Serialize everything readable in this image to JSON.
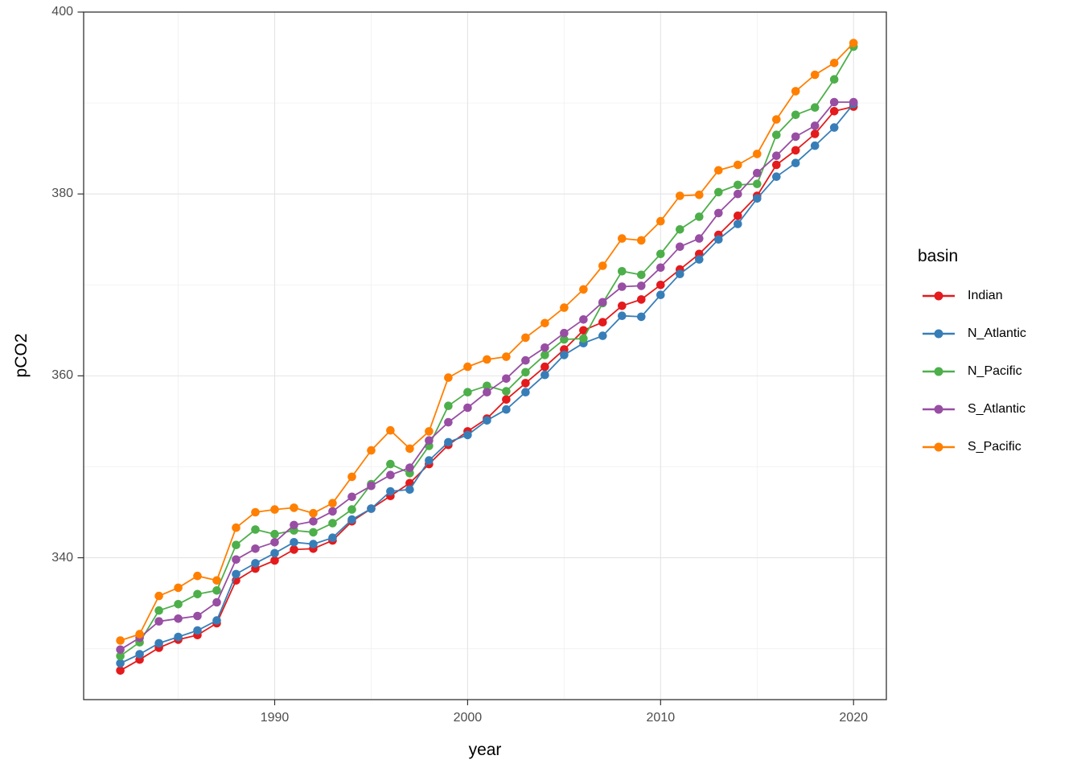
{
  "page": {
    "background": "#ffffff"
  },
  "chart_data": {
    "type": "line",
    "title": "",
    "xlabel": "year",
    "ylabel": "pCO2",
    "legend_title": "basin",
    "legend_position": "right",
    "grid": true,
    "marker": "circle",
    "x_axis": {
      "ticks": [
        1990,
        2000,
        2010,
        2020
      ],
      "tick_labels": [
        "1990",
        "2000",
        "2010",
        "2020"
      ],
      "minor_ticks": [
        1985,
        1995,
        2005,
        2015
      ],
      "range": [
        1980.1,
        2021.7
      ]
    },
    "y_axis": {
      "ticks": [
        340,
        360,
        380,
        400
      ],
      "tick_labels": [
        "340",
        "360",
        "380",
        "400"
      ],
      "minor_ticks": [
        330,
        350,
        370,
        390
      ],
      "range": [
        324.4,
        400.0
      ]
    },
    "x": [
      1982,
      1983,
      1984,
      1985,
      1986,
      1987,
      1988,
      1989,
      1990,
      1991,
      1992,
      1993,
      1994,
      1995,
      1996,
      1997,
      1998,
      1999,
      2000,
      2001,
      2002,
      2003,
      2004,
      2005,
      2006,
      2007,
      2008,
      2009,
      2010,
      2011,
      2012,
      2013,
      2014,
      2015,
      2016,
      2017,
      2018,
      2019,
      2020
    ],
    "series": [
      {
        "name": "Indian",
        "color": "#E41A1C",
        "values": [
          327.6,
          328.8,
          330.1,
          331.0,
          331.5,
          332.8,
          337.5,
          338.8,
          339.7,
          340.9,
          341.0,
          341.9,
          344.0,
          345.4,
          346.8,
          348.2,
          350.3,
          352.4,
          353.9,
          355.3,
          357.4,
          359.2,
          361.0,
          362.9,
          365.0,
          365.9,
          367.7,
          368.4,
          370.0,
          371.7,
          373.4,
          375.5,
          377.6,
          379.8,
          383.2,
          384.8,
          386.6,
          389.1,
          389.6
        ]
      },
      {
        "name": "N_Atlantic",
        "color": "#377EB8",
        "values": [
          328.4,
          329.4,
          330.6,
          331.3,
          332.0,
          333.1,
          338.2,
          339.4,
          340.5,
          341.7,
          341.5,
          342.2,
          344.2,
          345.4,
          347.3,
          347.5,
          350.7,
          352.7,
          353.5,
          355.1,
          356.3,
          358.2,
          360.1,
          362.3,
          363.6,
          364.4,
          366.6,
          366.5,
          368.9,
          371.2,
          372.8,
          375.0,
          376.7,
          379.5,
          381.9,
          383.4,
          385.3,
          387.3,
          389.9
        ]
      },
      {
        "name": "N_Pacific",
        "color": "#4DAF4A",
        "values": [
          329.2,
          330.7,
          334.2,
          334.9,
          336.0,
          336.4,
          341.4,
          343.1,
          342.6,
          343.0,
          342.8,
          343.8,
          345.3,
          348.1,
          350.3,
          349.3,
          352.3,
          356.7,
          358.2,
          358.9,
          358.3,
          360.4,
          362.3,
          364.0,
          364.1,
          368.0,
          371.5,
          371.1,
          373.4,
          376.1,
          377.5,
          380.2,
          381.0,
          381.1,
          386.5,
          388.7,
          389.5,
          392.6,
          396.2
        ]
      },
      {
        "name": "S_Atlantic",
        "color": "#984EA3",
        "values": [
          329.9,
          331.2,
          333.0,
          333.3,
          333.6,
          335.1,
          339.8,
          341.0,
          341.7,
          343.6,
          344.0,
          345.1,
          346.7,
          347.9,
          349.1,
          349.9,
          352.9,
          354.9,
          356.5,
          358.2,
          359.7,
          361.7,
          363.1,
          364.7,
          366.2,
          368.1,
          369.8,
          369.9,
          371.9,
          374.2,
          375.1,
          377.9,
          380.0,
          382.3,
          384.2,
          386.3,
          387.5,
          390.1,
          390.1
        ]
      },
      {
        "name": "S_Pacific",
        "color": "#FF7F00",
        "values": [
          330.9,
          331.6,
          335.8,
          336.7,
          338.0,
          337.5,
          343.3,
          345.0,
          345.3,
          345.5,
          344.9,
          346.0,
          348.9,
          351.8,
          354.0,
          352.0,
          353.9,
          359.8,
          361.0,
          361.8,
          362.1,
          364.2,
          365.8,
          367.5,
          369.5,
          372.1,
          375.1,
          374.9,
          377.0,
          379.8,
          379.9,
          382.6,
          383.2,
          384.4,
          388.2,
          391.3,
          393.1,
          394.4,
          396.6
        ]
      }
    ],
    "style": {
      "panel_border_color": "#333333",
      "grid_major_color": "#e4e4e4",
      "grid_minor_color": "#f0f0f0",
      "tick_color": "#333333",
      "tick_label_color": "#4d4d4d"
    }
  }
}
